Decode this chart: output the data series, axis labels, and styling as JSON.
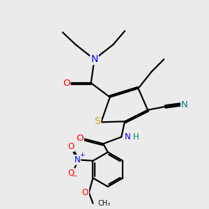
{
  "bg_color": "#ebebeb",
  "bond_color": "#000000",
  "atom_colors": {
    "N": "#0000ff",
    "O": "#ff0000",
    "S": "#ccaa00",
    "CN_N": "#008080",
    "NH": "#008080"
  },
  "font_size": 8.5,
  "lw": 1.6
}
